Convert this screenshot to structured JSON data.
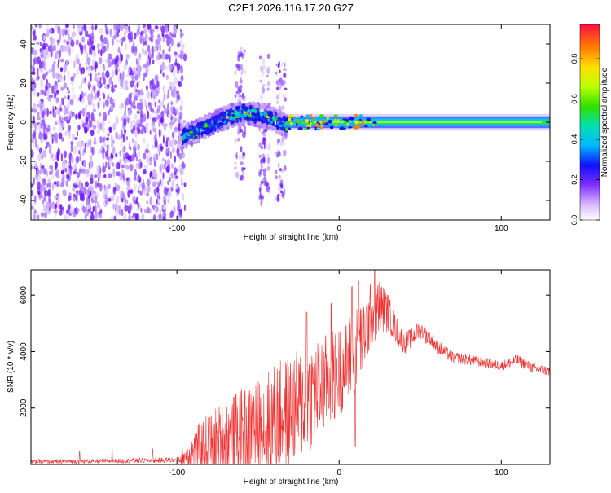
{
  "chart_data": [
    {
      "type": "heatmap",
      "title": "C2E1.2026.116.17.20.G27",
      "xlabel": "Height of straight line (km)",
      "ylabel": "Frequency (Hz)",
      "xlim": [
        -190,
        130
      ],
      "ylim": [
        -50,
        50
      ],
      "xticks": [
        {
          "value": -100,
          "label": "-100"
        },
        {
          "value": 0,
          "label": "0"
        },
        {
          "value": 100,
          "label": "100"
        }
      ],
      "yticks": [
        {
          "value": -40,
          "label": "-40"
        },
        {
          "value": -20,
          "label": "-20"
        },
        {
          "value": 0,
          "label": "0"
        },
        {
          "value": 20,
          "label": "20"
        },
        {
          "value": 40,
          "label": "40"
        }
      ],
      "colorbar": {
        "label": "Normalized spectral amplitude",
        "range": [
          0,
          0.97
        ],
        "ticks": [
          {
            "value": 0.0,
            "label": "0.0"
          },
          {
            "value": 0.2,
            "label": "0.2"
          },
          {
            "value": 0.4,
            "label": "0.4"
          },
          {
            "value": 0.6,
            "label": "0.6"
          },
          {
            "value": 0.8,
            "label": "0.8"
          }
        ]
      },
      "regions": [
        {
          "name": "noise",
          "x_range": [
            -190,
            -95
          ],
          "freq_range": [
            -50,
            50
          ],
          "amplitude": 0.12
        },
        {
          "name": "signal-curve",
          "x_range": [
            -97,
            -32
          ],
          "center_freq": [
            -8,
            -3,
            2,
            5,
            3,
            -2
          ],
          "half_width_hz": 4,
          "amplitude": 0.45
        },
        {
          "name": "spur-1",
          "x": -61,
          "freq_range": [
            -30,
            38
          ],
          "amplitude": 0.05
        },
        {
          "name": "spur-2",
          "x": -46,
          "freq_range": [
            -45,
            35
          ],
          "amplitude": 0.09
        },
        {
          "name": "spur-3",
          "x": -36,
          "freq_range": [
            -40,
            30
          ],
          "amplitude": 0.1
        },
        {
          "name": "band",
          "x_range": [
            -33,
            130
          ],
          "center_freq": 0,
          "half_width_hz": 3,
          "amplitude": 0.5
        }
      ]
    },
    {
      "type": "line",
      "xlabel": "Height of straight line (km)",
      "ylabel": "SNR (10 * v/v)",
      "xlim": [
        -190,
        130
      ],
      "ylim": [
        0,
        6900
      ],
      "xticks": [
        {
          "value": -100,
          "label": "-100"
        },
        {
          "value": 0,
          "label": "0"
        },
        {
          "value": 100,
          "label": "100"
        }
      ],
      "yticks": [
        {
          "value": 2000,
          "label": "2000"
        },
        {
          "value": 4000,
          "label": "4000"
        },
        {
          "value": 6000,
          "label": "6000"
        }
      ],
      "series_color": "#ee3333",
      "series": [
        {
          "name": "SNR",
          "envelope": {
            "x": [
              -190,
              -140,
              -100,
              -90,
              -80,
              -70,
              -60,
              -50,
              -40,
              -30,
              -20,
              -10,
              0,
              10,
              15,
              20,
              25,
              30,
              35,
              40,
              45,
              50,
              60,
              70,
              80,
              90,
              100,
              110,
              120,
              130
            ],
            "base": [
              100,
              120,
              160,
              400,
              700,
              900,
              1100,
              1300,
              1600,
              1900,
              2300,
              2800,
              3300,
              4000,
              4600,
              5300,
              5600,
              5400,
              4800,
              4300,
              4500,
              4800,
              4200,
              3800,
              3700,
              3600,
              3500,
              3700,
              3400,
              3300
            ],
            "spread": [
              80,
              80,
              100,
              800,
              1200,
              1400,
              1600,
              1800,
              2000,
              2000,
              2000,
              1800,
              1600,
              1600,
              1400,
              1200,
              1000,
              700,
              500,
              400,
              350,
              350,
              250,
              220,
              200,
              180,
              180,
              200,
              180,
              180
            ]
          },
          "spikes": [
            {
              "x": -160,
              "y": 450
            },
            {
              "x": -140,
              "y": 550
            },
            {
              "x": -115,
              "y": 550
            },
            {
              "x": -20,
              "y": 5400
            },
            {
              "x": -5,
              "y": 5700
            },
            {
              "x": 8,
              "y": 6300
            },
            {
              "x": 12,
              "y": 6500
            },
            {
              "x": 22,
              "y": 6900
            },
            {
              "x": 10,
              "y": 650
            }
          ]
        }
      ]
    }
  ]
}
